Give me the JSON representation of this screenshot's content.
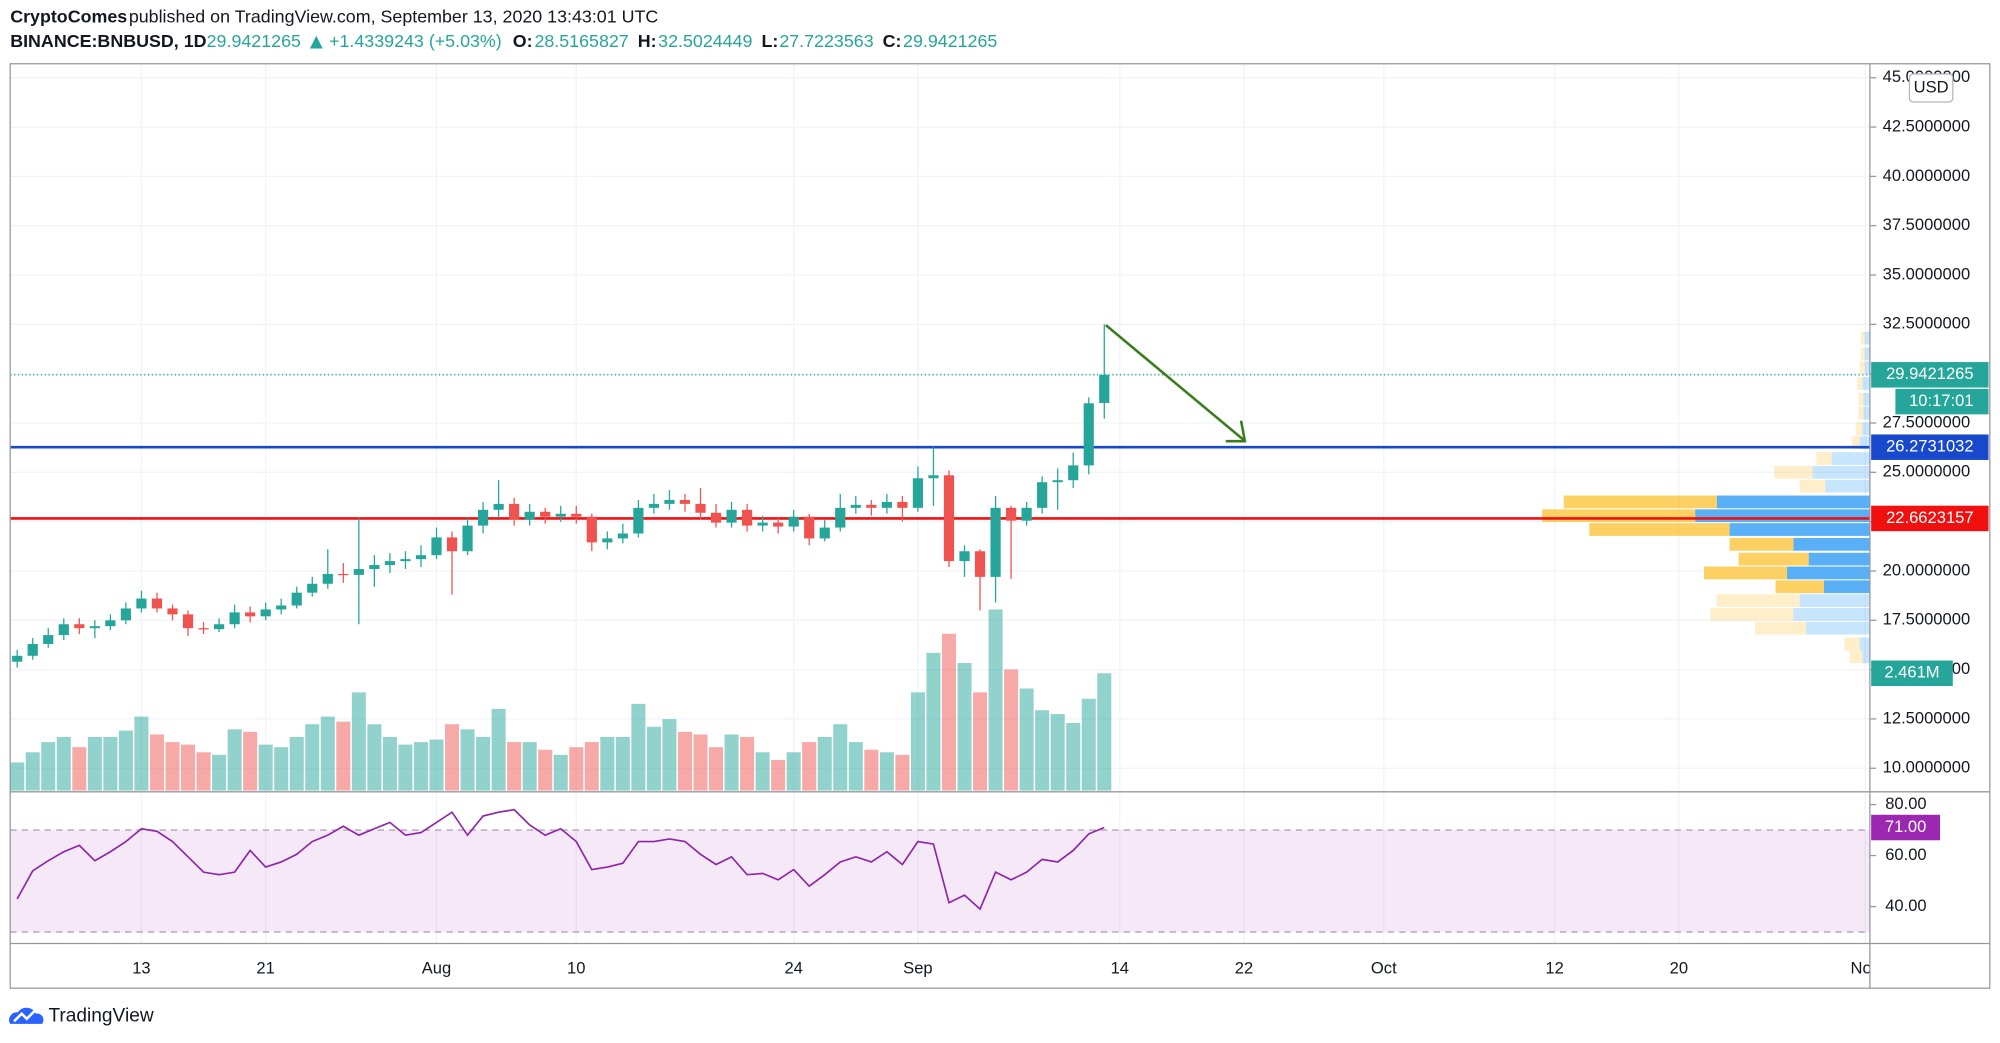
{
  "header": {
    "author": "CryptoComes",
    "published": "published on TradingView.com, September 13, 2020 13:43:01 UTC",
    "symbol": "BINANCE:BNBUSD, 1D",
    "change": "+1.4339243 (+5.03%)",
    "o_label": "O:",
    "h_label": "H:",
    "l_label": "L:",
    "c_label": "C:"
  },
  "footer": {
    "brand": "TradingView"
  },
  "chart_data": {
    "type": "candlestick",
    "currency": "USD",
    "countdown": "10:17:01",
    "up_color": "#26a69a",
    "down_color": "#ef5350",
    "grid": true,
    "x": [
      5,
      6,
      7,
      8,
      9,
      10,
      11,
      12,
      13,
      14,
      15,
      16,
      17,
      18,
      19,
      20,
      21,
      22,
      23,
      24,
      25,
      26,
      27,
      28,
      29,
      30,
      31,
      32,
      33,
      34,
      35,
      36,
      37,
      38,
      39,
      40,
      41,
      42,
      43,
      44,
      45,
      46,
      47,
      48,
      49,
      50,
      51,
      52,
      53,
      54,
      55,
      56,
      57,
      58,
      59,
      60,
      61,
      62,
      63,
      64,
      65,
      66,
      67,
      68,
      69,
      70,
      71,
      72,
      73,
      74,
      75
    ],
    "xlim": [
      4.55,
      124.3
    ],
    "xticks": [
      13,
      21,
      {
        "value": 32,
        "label": "Aug"
      },
      {
        "value": 41,
        "label": "10"
      },
      {
        "value": 55,
        "label": "24"
      },
      {
        "value": 63,
        "label": "Sep"
      },
      {
        "value": 76,
        "label": "14"
      },
      {
        "value": 84,
        "label": "22"
      },
      {
        "value": 93,
        "label": "Oct"
      },
      {
        "value": 104,
        "label": "12"
      },
      {
        "value": 112,
        "label": "20"
      },
      {
        "value": 124,
        "label": "Nov"
      }
    ],
    "ylim": [
      8.87,
      45.71
    ],
    "yticks": [
      {
        "value": 10,
        "label": "10.0000000"
      },
      {
        "value": 12.5,
        "label": "12.5000000"
      },
      {
        "value": 15,
        "label": "15.0000000"
      },
      {
        "value": 17.5,
        "label": "17.5000000"
      },
      {
        "value": 20,
        "label": "20.0000000"
      },
      {
        "value": 22.5,
        "label": "22.5000000"
      },
      {
        "value": 25,
        "label": "25.0000000"
      },
      {
        "value": 27.5,
        "label": "27.5000000"
      },
      {
        "value": 30,
        "label": "30.0000000"
      },
      {
        "value": 32.5,
        "label": "32.5000000"
      },
      {
        "value": 35,
        "label": "35.0000000"
      },
      {
        "value": 37.5,
        "label": "37.5000000"
      },
      {
        "value": 40,
        "label": "40.0000000"
      },
      {
        "value": 42.5,
        "label": "42.5000000"
      },
      {
        "value": 45,
        "label": "45.0000000"
      }
    ],
    "open": [
      15.4,
      15.7,
      16.3,
      16.75,
      17.3,
      17.1,
      17.2,
      17.5,
      18.1,
      18.6,
      18.1,
      17.8,
      17.1,
      17.05,
      17.3,
      17.9,
      17.7,
      18.05,
      18.25,
      18.9,
      19.35,
      19.85,
      19.8,
      20.1,
      20.3,
      20.5,
      20.6,
      20.8,
      21.7,
      21.0,
      22.3,
      23.1,
      23.4,
      22.6,
      23.0,
      22.75,
      22.9,
      22.75,
      21.45,
      21.65,
      21.9,
      23.2,
      23.4,
      23.6,
      23.4,
      22.95,
      22.45,
      23.1,
      22.3,
      22.45,
      22.25,
      22.75,
      21.65,
      22.2,
      23.2,
      23.35,
      23.2,
      23.5,
      23.2,
      24.7,
      24.85,
      20.5,
      21.0,
      19.7,
      23.2,
      22.55,
      23.2,
      24.5,
      24.6,
      25.35,
      28.5165827
    ],
    "high": [
      16.0,
      16.6,
      17.1,
      17.6,
      17.6,
      17.5,
      17.8,
      18.4,
      19.0,
      18.9,
      18.3,
      18.0,
      17.4,
      17.6,
      18.3,
      18.2,
      18.4,
      18.6,
      19.2,
      19.7,
      21.1,
      20.4,
      22.7,
      20.8,
      20.9,
      21.0,
      21.3,
      22.2,
      22.0,
      22.7,
      23.5,
      24.6,
      23.7,
      23.4,
      23.2,
      23.3,
      23.3,
      22.9,
      22.0,
      22.4,
      23.6,
      23.9,
      24.1,
      23.9,
      24.2,
      23.4,
      23.5,
      23.4,
      22.8,
      22.7,
      23.1,
      22.9,
      22.6,
      23.9,
      23.8,
      23.6,
      23.9,
      23.8,
      25.3,
      26.3,
      25.1,
      21.3,
      21.1,
      23.8,
      23.3,
      23.5,
      24.8,
      25.2,
      26.0,
      28.8,
      32.5024449
    ],
    "low": [
      15.1,
      15.5,
      16.1,
      16.5,
      16.8,
      16.6,
      17.0,
      17.3,
      17.9,
      17.9,
      17.5,
      16.7,
      16.8,
      16.9,
      17.1,
      17.4,
      17.5,
      17.8,
      18.1,
      18.7,
      19.1,
      19.4,
      17.3,
      19.2,
      19.9,
      20.1,
      20.2,
      20.6,
      18.8,
      20.8,
      21.9,
      22.7,
      22.3,
      22.3,
      22.4,
      22.5,
      22.4,
      21.0,
      21.1,
      21.4,
      21.7,
      22.9,
      23.1,
      23.0,
      22.6,
      22.2,
      22.2,
      22.0,
      22.0,
      21.9,
      22.0,
      21.3,
      21.5,
      22.0,
      22.9,
      22.8,
      22.9,
      22.5,
      23.0,
      23.3,
      20.2,
      19.7,
      18.0,
      18.4,
      19.6,
      22.3,
      22.9,
      23.1,
      24.2,
      24.9,
      27.7223563
    ],
    "close": [
      15.7,
      16.3,
      16.75,
      17.3,
      17.1,
      17.2,
      17.5,
      18.1,
      18.6,
      18.1,
      17.8,
      17.1,
      17.05,
      17.3,
      17.9,
      17.7,
      18.05,
      18.25,
      18.9,
      19.35,
      19.85,
      19.8,
      20.1,
      20.3,
      20.5,
      20.6,
      20.8,
      21.7,
      21.0,
      22.3,
      23.1,
      23.4,
      22.6,
      23.0,
      22.75,
      22.9,
      22.75,
      21.45,
      21.65,
      21.9,
      23.2,
      23.4,
      23.6,
      23.4,
      22.95,
      22.45,
      23.1,
      22.3,
      22.45,
      22.25,
      22.75,
      21.65,
      22.2,
      23.2,
      23.35,
      23.2,
      23.5,
      23.2,
      24.7,
      24.85,
      20.5,
      21.0,
      19.7,
      23.2,
      22.55,
      23.2,
      24.5,
      24.6,
      25.35,
      28.5,
      29.9421265
    ],
    "volume": {
      "ylim": [
        0,
        15250000
      ],
      "up_color": "rgba(38,166,154,0.5)",
      "down_color": "rgba(239,83,80,0.5)",
      "values": [
        589000,
        803000,
        1017000,
        1124000,
        910000,
        1124000,
        1124000,
        1257000,
        1552000,
        1177000,
        1017000,
        963000,
        803000,
        749000,
        1284000,
        1231000,
        963000,
        910000,
        1124000,
        1391000,
        1552000,
        1445000,
        2060000,
        1391000,
        1124000,
        963000,
        1017000,
        1070000,
        1391000,
        1284000,
        1124000,
        1712000,
        1017000,
        1017000,
        856000,
        749000,
        910000,
        1017000,
        1124000,
        1124000,
        1819000,
        1338000,
        1498000,
        1231000,
        1177000,
        910000,
        1177000,
        1124000,
        803000,
        642000,
        803000,
        1017000,
        1124000,
        1391000,
        1017000,
        856000,
        803000,
        749000,
        2060000,
        2889000,
        3290000,
        2675000,
        2060000,
        3799000,
        2541000,
        2140000,
        1685000,
        1605000,
        1418000,
        1926000,
        2461000
      ],
      "value_labels": [
        null,
        null,
        null,
        null,
        null,
        null,
        null,
        null,
        null,
        null,
        null,
        null,
        null,
        null,
        null,
        null,
        null,
        null,
        null,
        null,
        null,
        null,
        null,
        null,
        null,
        null,
        null,
        null,
        null,
        null,
        null,
        null,
        null,
        null,
        null,
        null,
        null,
        null,
        null,
        null,
        null,
        null,
        null,
        null,
        null,
        null,
        null,
        null,
        null,
        null,
        null,
        null,
        null,
        null,
        null,
        null,
        null,
        null,
        null,
        null,
        null,
        null,
        null,
        null,
        null,
        null,
        null,
        null,
        null,
        null,
        "2.461M"
      ]
    },
    "levels": [
      {
        "value": 26.2731032,
        "color": "#1848cc"
      },
      {
        "value": 22.6623157,
        "color": "#f01010"
      }
    ],
    "volume_profile": {
      "xlim": [
        0,
        260
      ],
      "value_area": [
        19.2,
        23.5
      ],
      "buy_color": "#2196f3",
      "sell_color": "#fbc02d",
      "prices": [
        15.65,
        16.3,
        17.1,
        17.8,
        18.5,
        19.2,
        19.9,
        20.6,
        21.35,
        22.1,
        22.8,
        23.5,
        24.3,
        25.0,
        25.7,
        26.5,
        27.2,
        28.0,
        28.7,
        29.5,
        30.3,
        31.0,
        31.8
      ],
      "buy": [
        6,
        8,
        50,
        60,
        55,
        36,
        65,
        48,
        60,
        110,
        137,
        120,
        35,
        45,
        30,
        8,
        6,
        5,
        5,
        6,
        4,
        4,
        4
      ],
      "sell": [
        10,
        12,
        40,
        65,
        65,
        38,
        65,
        55,
        50,
        110,
        120,
        120,
        20,
        30,
        12,
        6,
        5,
        4,
        4,
        4,
        4,
        3,
        3
      ]
    },
    "rsi": {
      "color": "#8e24aa",
      "ylim": [
        25.5,
        84.5
      ],
      "band": [
        30,
        70
      ],
      "yticks": [
        {
          "value": 40,
          "label": "40.00"
        },
        {
          "value": 60,
          "label": "60.00"
        },
        {
          "value": 80,
          "label": "80.00"
        }
      ],
      "values": [
        43,
        54,
        58,
        61.5,
        64,
        58,
        61.5,
        65.5,
        70.5,
        69.5,
        65.5,
        59.5,
        53.5,
        52.5,
        53.5,
        62,
        55.5,
        57.5,
        60.5,
        65.5,
        68,
        71.5,
        68,
        70.5,
        73,
        68,
        69,
        73,
        77,
        68,
        75.5,
        77,
        78,
        72,
        68,
        70.5,
        65.5,
        54.5,
        55.5,
        57,
        65.5,
        65.5,
        66.5,
        65.5,
        60.5,
        56.5,
        59.5,
        52.5,
        53,
        50.5,
        54.5,
        48,
        52.5,
        57.5,
        59.5,
        57.5,
        61.5,
        56.5,
        65.5,
        64.5,
        41.5,
        44.5,
        39,
        53.5,
        50.5,
        53.5,
        58.5,
        57.5,
        62,
        68.5,
        71
      ],
      "value_labels": [
        null,
        null,
        null,
        null,
        null,
        null,
        null,
        null,
        null,
        null,
        null,
        null,
        null,
        null,
        null,
        null,
        null,
        null,
        null,
        null,
        null,
        null,
        null,
        null,
        null,
        null,
        null,
        null,
        null,
        null,
        null,
        null,
        null,
        null,
        null,
        null,
        null,
        null,
        null,
        null,
        null,
        null,
        null,
        null,
        null,
        null,
        null,
        null,
        null,
        null,
        null,
        null,
        null,
        null,
        null,
        null,
        null,
        null,
        null,
        null,
        null,
        null,
        null,
        null,
        null,
        null,
        null,
        null,
        null,
        null,
        "71.00"
      ]
    }
  }
}
